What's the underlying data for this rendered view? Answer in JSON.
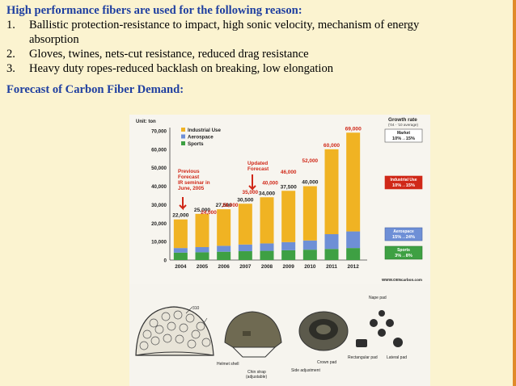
{
  "heading1": "High performance fibers are used for the following reason:",
  "reasons": [
    {
      "num": "1.",
      "line1": "Ballistic protection-resistance to impact, high sonic velocity, mechanism of energy",
      "line2": "absorption"
    },
    {
      "num": "2.",
      "line1": "Gloves, twines, nets-cut resistance, reduced drag resistance"
    },
    {
      "num": "3.",
      "line1": "Heavy duty ropes-reduced backlash on breaking, low elongation"
    }
  ],
  "heading2": "Forecast of Carbon Fiber Demand:",
  "chart_data": {
    "type": "bar",
    "unit_label": "Unit: ton",
    "categories": [
      "2004",
      "2005",
      "2006",
      "2007",
      "2008",
      "2009",
      "2010",
      "2011",
      "2012"
    ],
    "totals": [
      22000,
      25000,
      27500,
      30500,
      34000,
      37500,
      40000,
      60000,
      69000
    ],
    "total_labels": [
      "22,000",
      "25,000",
      "27,500",
      "30,500",
      "34,000",
      "37,500",
      "40,000",
      "60,000",
      "69,000"
    ],
    "previous_forecast_values": [
      "24,000",
      "28,000",
      "35,000",
      "40,000",
      "46,000",
      "52,000"
    ],
    "series": [
      {
        "name": "Sports",
        "values": [
          4000,
          4200,
          4500,
          4800,
          5000,
          5300,
          5600,
          6000,
          6500
        ]
      },
      {
        "name": "Aerospace",
        "values": [
          2500,
          2800,
          3200,
          3600,
          4000,
          4400,
          5000,
          8000,
          9000
        ]
      },
      {
        "name": "Industrial Use",
        "values": [
          15500,
          18000,
          19800,
          22100,
          25000,
          27800,
          29400,
          46000,
          53500
        ]
      }
    ],
    "yticks": [
      "0",
      "10,000",
      "20,000",
      "30,000",
      "40,000",
      "50,000",
      "60,000",
      "70,000"
    ],
    "ylim": [
      0,
      70000
    ],
    "legend": [
      "Industrial Use",
      "Aerospace",
      "Sports"
    ],
    "annotation_previous": [
      "Previous",
      "Forecast",
      "IR seminar in",
      "June, 2005"
    ],
    "annotation_updated": [
      "Updated",
      "Forecast"
    ],
    "growth_title": [
      "Growth rate",
      "('04 - '10 average)"
    ],
    "growth_boxes": [
      {
        "label": "Market",
        "value": "10%→15%"
      },
      {
        "label": "Industrial Use",
        "value": "10%→15%"
      },
      {
        "label": "Aerospace",
        "value": "15%→24%"
      },
      {
        "label": "Sports",
        "value": "3%→8%"
      }
    ],
    "source": "WWW.OENcarbon.com",
    "colors": {
      "industrial": "#f0b323",
      "aerospace": "#6e8fd6",
      "sports": "#3ea043",
      "total_label": "#d02818"
    }
  },
  "helmet_labels": {
    "helmet_shell": "Helmet shell",
    "chin_strap": "Chin strap",
    "chin_strap_note": "(adjustable)",
    "side_adjustment": "Side adjustment",
    "nape_pad": "Nape pad",
    "crown_pad": "Crown pad",
    "rectangular_pad": "Rectangular pad",
    "lateral_pad": "Lateral pad",
    "callout_310": "310"
  }
}
